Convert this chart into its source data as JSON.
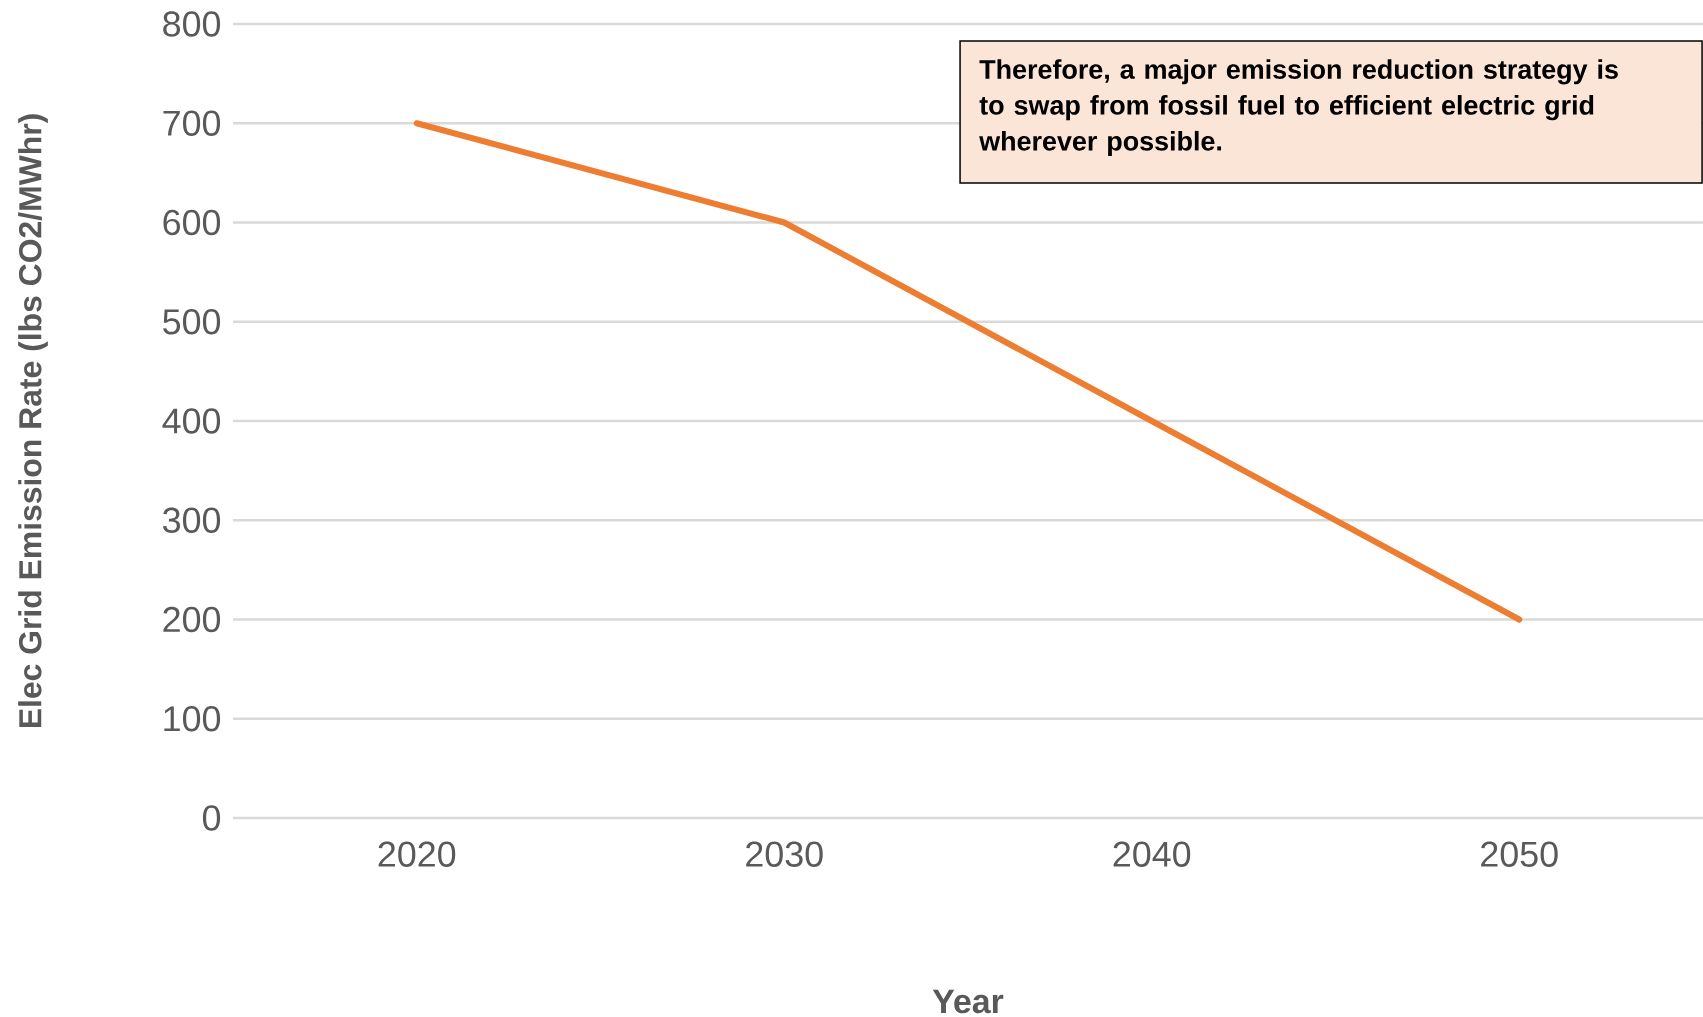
{
  "chart_data": {
    "type": "line",
    "xlabel": "Year",
    "ylabel": "Elec Grid Emission Rate (lbs CO2/MWhr)",
    "categories": [
      "2020",
      "2030",
      "2040",
      "2050"
    ],
    "values": [
      700,
      600,
      400,
      200
    ],
    "color": "#ed7d31",
    "ylim": [
      0,
      800
    ],
    "yticks": [
      0,
      100,
      200,
      300,
      400,
      500,
      600,
      700,
      800
    ],
    "grid": "y",
    "annotations": [
      "Therefore, a major emission reduction strategy is to swap from fossil fuel to efficient electric grid wherever possible."
    ]
  }
}
